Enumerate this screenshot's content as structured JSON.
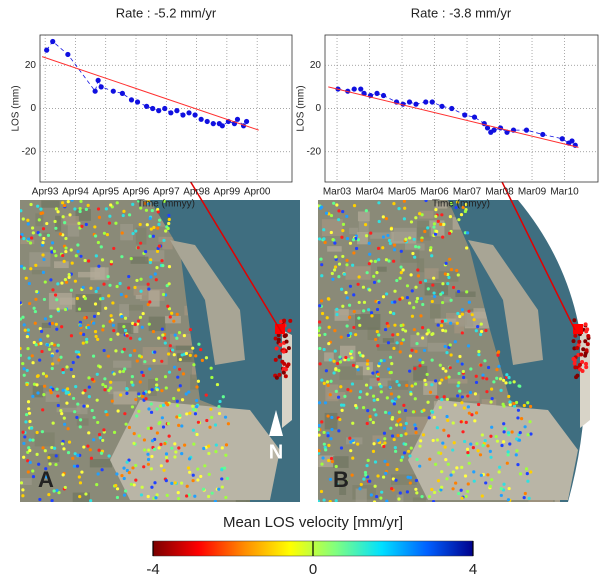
{
  "chart_data": [
    {
      "type": "line",
      "title": "Rate : -5.2 mm/yr",
      "x_label": "Time (mmyy)",
      "y_label": "LOS (mm)",
      "xlim": [
        1993.08,
        2001.4
      ],
      "ylim": [
        -34,
        34
      ],
      "grid": true,
      "xticks": [
        {
          "value": 1993.25,
          "label": "Apr93"
        },
        {
          "value": 1994.25,
          "label": "Apr94"
        },
        {
          "value": 1995.25,
          "label": "Apr95"
        },
        {
          "value": 1996.25,
          "label": "Apr96"
        },
        {
          "value": 1997.25,
          "label": "Apr97"
        },
        {
          "value": 1998.25,
          "label": "Apr98"
        },
        {
          "value": 1999.25,
          "label": "Apr99"
        },
        {
          "value": 2000.25,
          "label": "Apr00"
        }
      ],
      "yticks": [
        -20,
        0,
        20
      ],
      "series": [
        {
          "color": "#1010e0",
          "markers": true,
          "dashed": true,
          "x": [
            1993.3,
            1993.5,
            1994.0,
            1994.9,
            1995.0,
            1995.1,
            1995.5,
            1995.8,
            1996.1,
            1996.3,
            1996.6,
            1996.8,
            1997.0,
            1997.2,
            1997.4,
            1997.6,
            1997.8,
            1998.0,
            1998.2,
            1998.4,
            1998.6,
            1998.8,
            1999.0,
            1999.1,
            1999.3,
            1999.5,
            1999.6,
            1999.8,
            1999.9
          ],
          "values": [
            27,
            31,
            25,
            8,
            13,
            10,
            8,
            7,
            4,
            3,
            1,
            0,
            -1,
            0,
            -2,
            -1,
            -3,
            -2,
            -3,
            -5,
            -6,
            -7,
            -7,
            -8,
            -6,
            -7,
            -5,
            -8,
            -6
          ]
        },
        {
          "color": "#ff3030",
          "markers": false,
          "dashed": false,
          "x": [
            1993.15,
            2000.3
          ],
          "values": [
            24,
            -10
          ]
        }
      ]
    },
    {
      "type": "line",
      "title": "Rate : -3.8 mm/yr",
      "x_label": "Time (mmyy)",
      "y_label": "LOS (mm)",
      "xlim": [
        2002.8,
        2011.2
      ],
      "ylim": [
        -34,
        34
      ],
      "grid": true,
      "xticks": [
        {
          "value": 2003.17,
          "label": "Mar03"
        },
        {
          "value": 2004.17,
          "label": "Mar04"
        },
        {
          "value": 2005.17,
          "label": "Mar05"
        },
        {
          "value": 2006.17,
          "label": "Mar06"
        },
        {
          "value": 2007.17,
          "label": "Mar07"
        },
        {
          "value": 2008.17,
          "label": "Mar08"
        },
        {
          "value": 2009.17,
          "label": "Mar09"
        },
        {
          "value": 2010.17,
          "label": "Mar10"
        }
      ],
      "yticks": [
        -20,
        0,
        20
      ],
      "series": [
        {
          "color": "#1010e0",
          "markers": true,
          "dashed": true,
          "x": [
            2003.2,
            2003.5,
            2003.7,
            2003.9,
            2004.0,
            2004.2,
            2004.4,
            2004.6,
            2005.0,
            2005.2,
            2005.4,
            2005.6,
            2005.9,
            2006.1,
            2006.4,
            2006.7,
            2007.1,
            2007.4,
            2007.7,
            2007.8,
            2007.9,
            2008.0,
            2008.2,
            2008.4,
            2008.6,
            2009.0,
            2009.5,
            2010.1,
            2010.3,
            2010.4,
            2010.5
          ],
          "values": [
            9,
            8,
            9,
            9,
            7,
            6,
            7,
            6,
            3,
            2,
            3,
            2,
            3,
            3,
            1,
            0,
            -3,
            -4,
            -7,
            -9,
            -11,
            -10,
            -9,
            -11,
            -10,
            -10,
            -12,
            -14,
            -16,
            -15,
            -17
          ]
        },
        {
          "color": "#ff3030",
          "markers": false,
          "dashed": false,
          "x": [
            2002.9,
            2010.6
          ],
          "values": [
            10,
            -18
          ]
        }
      ]
    }
  ],
  "panels": {
    "labels": [
      "A",
      "B"
    ],
    "north": "N"
  },
  "colorbar": {
    "title": "Mean LOS velocity [mm/yr]",
    "lim": [
      -4,
      4
    ],
    "ticks": [
      -4,
      0,
      4
    ],
    "colors": [
      "#7a0000",
      "#ff0000",
      "#ff8c00",
      "#ffff00",
      "#80ff80",
      "#00e0ff",
      "#0060ff",
      "#00008c"
    ]
  }
}
